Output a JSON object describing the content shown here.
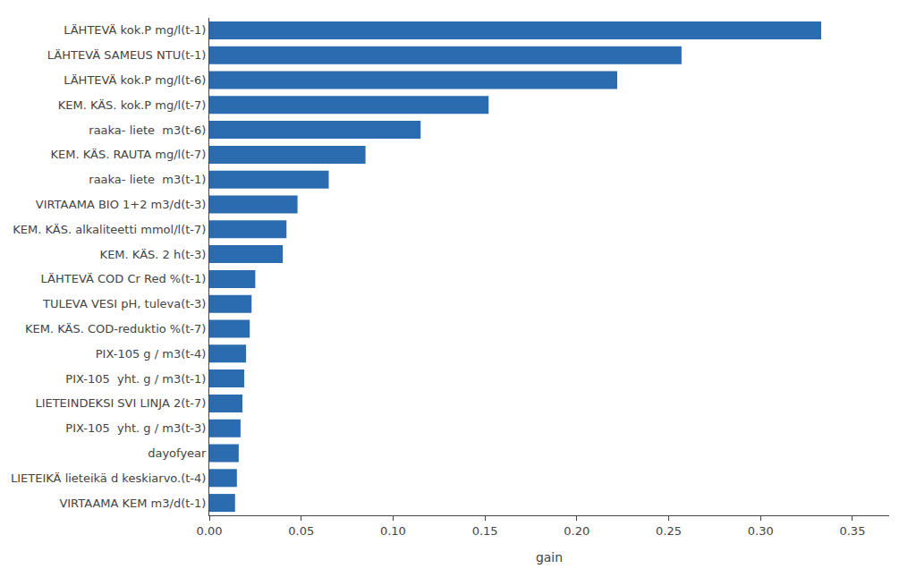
{
  "chart_data": {
    "type": "bar",
    "orientation": "horizontal",
    "categories": [
      "VIRTAAMA KEM m3/d(t-1)",
      "LIETEIKÄ lieteikä d keskiarvo.(t-4)",
      "dayofyear",
      "PIX-105  yht. g / m3(t-3)",
      "LIETEINDEKSI SVI LINJA 2(t-7)",
      "PIX-105  yht. g / m3(t-1)",
      "PIX-105 g / m3(t-4)",
      "KEM. KÄS. COD-reduktio %(t-7)",
      "TULEVA VESI pH, tuleva(t-3)",
      "LÄHTEVÄ COD Cr Red %(t-1)",
      "KEM. KÄS. 2 h(t-3)",
      "KEM. KÄS. alkaliteetti mmol/l(t-7)",
      "VIRTAAMA BIO 1+2 m3/d(t-3)",
      "raaka- liete  m3(t-1)",
      "KEM. KÄS. RAUTA mg/l(t-7)",
      "raaka- liete  m3(t-6)",
      "KEM. KÄS. kok.P mg/l(t-7)",
      "LÄHTEVÄ kok.P mg/l(t-6)",
      "LÄHTEVÄ SAMEUS NTU(t-1)",
      "LÄHTEVÄ kok.P mg/l(t-1)"
    ],
    "values": [
      0.014,
      0.015,
      0.016,
      0.017,
      0.018,
      0.019,
      0.02,
      0.022,
      0.023,
      0.025,
      0.04,
      0.042,
      0.048,
      0.065,
      0.085,
      0.115,
      0.152,
      0.222,
      0.257,
      0.333
    ],
    "color": "#2b6cb0",
    "xlabel": "gain",
    "xlim": [
      0,
      0.37
    ],
    "xticks": [
      {
        "value": 0,
        "label": "0.00"
      },
      0.05,
      {
        "value": 0.1,
        "label": "0.10"
      },
      0.15,
      {
        "value": 0.2,
        "label": "0.20"
      },
      0.25,
      {
        "value": 0.3,
        "label": "0.30"
      },
      0.35
    ],
    "grid": false
  }
}
